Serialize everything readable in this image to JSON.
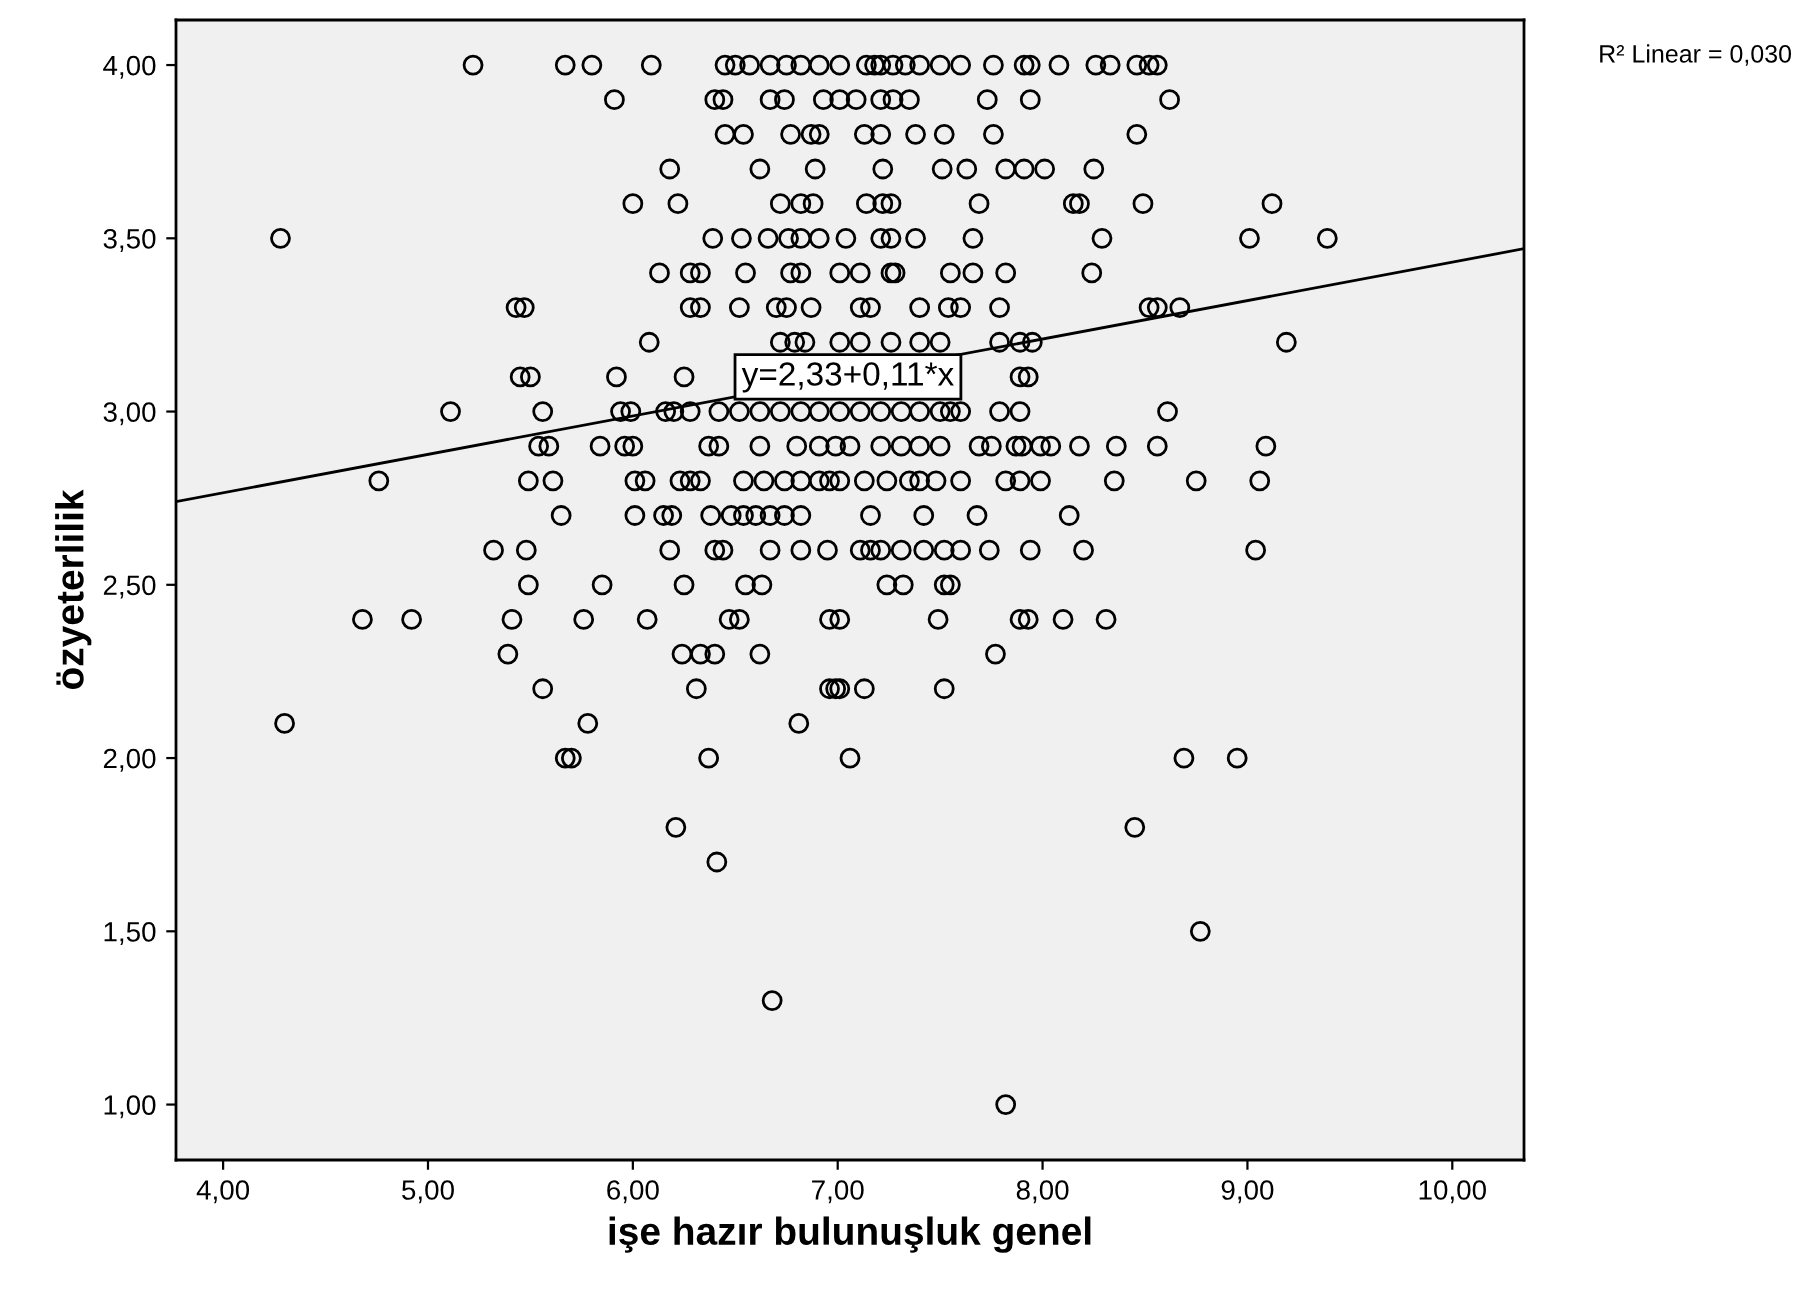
{
  "chart_data": {
    "type": "scatter",
    "xlabel": "işe hazır bulunuşluk genel",
    "ylabel": "özyeterlilik",
    "marker": "circle",
    "xlim": [
      3.77,
      10.35
    ],
    "ylim": [
      0.84,
      4.13
    ],
    "xticks": [
      {
        "value": 4,
        "label": "4,00"
      },
      {
        "value": 5,
        "label": "5,00"
      },
      {
        "value": 6,
        "label": "6,00"
      },
      {
        "value": 7,
        "label": "7,00"
      },
      {
        "value": 8,
        "label": "8,00"
      },
      {
        "value": 9,
        "label": "9,00"
      },
      {
        "value": 10,
        "label": "10,00"
      }
    ],
    "yticks": [
      {
        "value": 1,
        "label": "1,00"
      },
      {
        "value": 1.5,
        "label": "1,50"
      },
      {
        "value": 2,
        "label": "2,00"
      },
      {
        "value": 2.5,
        "label": "2,50"
      },
      {
        "value": 3,
        "label": "3,00"
      },
      {
        "value": 3.5,
        "label": "3,50"
      },
      {
        "value": 4,
        "label": "4,00"
      }
    ],
    "annotations": [
      {
        "text": "y=2,33+0,11*x",
        "x": 7.05,
        "y": 3.1
      },
      "R² Linear = 0,030"
    ],
    "series": [
      {
        "color": "#000000",
        "x": [
          5.22,
          5.67,
          5.8,
          6.09,
          6.45,
          6.5,
          6.57,
          6.67,
          6.75,
          6.82,
          6.91,
          7.01,
          7.14,
          7.18,
          7.21,
          7.27,
          7.33,
          7.4,
          7.5,
          7.6,
          7.76,
          7.91,
          7.94,
          8.08,
          8.26,
          8.33,
          8.46,
          8.52,
          8.56
        ],
        "values": [
          4,
          4,
          4,
          4,
          4,
          4,
          4,
          4,
          4,
          4,
          4,
          4,
          4,
          4,
          4,
          4,
          4,
          4,
          4,
          4,
          4,
          4,
          4,
          4,
          4,
          4,
          4,
          4,
          4
        ]
      },
      {
        "color": "#000000",
        "x": [
          5.91,
          6.4,
          6.44,
          6.67,
          6.74,
          6.93,
          7.01,
          7.09,
          7.21,
          7.27,
          7.35,
          7.73,
          7.94,
          8.62
        ],
        "values": [
          3.9,
          3.9,
          3.9,
          3.9,
          3.9,
          3.9,
          3.9,
          3.9,
          3.9,
          3.9,
          3.9,
          3.9,
          3.9,
          3.9
        ]
      },
      {
        "color": "#000000",
        "x": [
          6.45,
          6.54,
          6.77,
          6.87,
          6.91,
          7.13,
          7.21,
          7.38,
          7.52,
          7.76,
          8.46
        ],
        "values": [
          3.8,
          3.8,
          3.8,
          3.8,
          3.8,
          3.8,
          3.8,
          3.8,
          3.8,
          3.8,
          3.8
        ]
      },
      {
        "color": "#000000",
        "x": [
          6.18,
          6.62,
          6.89,
          7.22,
          7.51,
          7.63,
          7.82,
          7.91,
          8.01,
          8.25
        ],
        "values": [
          3.7,
          3.7,
          3.7,
          3.7,
          3.7,
          3.7,
          3.7,
          3.7,
          3.7,
          3.7
        ]
      },
      {
        "color": "#000000",
        "x": [
          6.0,
          6.22,
          6.72,
          6.82,
          6.88,
          7.14,
          7.22,
          7.26,
          7.69,
          8.15,
          8.18,
          8.49,
          9.12
        ],
        "values": [
          3.6,
          3.6,
          3.6,
          3.6,
          3.6,
          3.6,
          3.6,
          3.6,
          3.6,
          3.6,
          3.6,
          3.6,
          3.6
        ]
      },
      {
        "color": "#000000",
        "x": [
          4.28,
          6.39,
          6.53,
          6.66,
          6.76,
          6.82,
          6.91,
          7.04,
          7.21,
          7.26,
          7.38,
          7.66,
          8.29,
          9.01,
          9.39
        ],
        "values": [
          3.5,
          3.5,
          3.5,
          3.5,
          3.5,
          3.5,
          3.5,
          3.5,
          3.5,
          3.5,
          3.5,
          3.5,
          3.5,
          3.5,
          3.5
        ]
      },
      {
        "color": "#000000",
        "x": [
          6.13,
          6.28,
          6.33,
          6.55,
          6.77,
          6.82,
          7.01,
          7.11,
          7.26,
          7.28,
          7.55,
          7.66,
          7.82,
          8.24
        ],
        "values": [
          3.4,
          3.4,
          3.4,
          3.4,
          3.4,
          3.4,
          3.4,
          3.4,
          3.4,
          3.4,
          3.4,
          3.4,
          3.4,
          3.4
        ]
      },
      {
        "color": "#000000",
        "x": [
          5.43,
          5.47,
          6.28,
          6.33,
          6.52,
          6.7,
          6.75,
          6.87,
          7.11,
          7.16,
          7.4,
          7.54,
          7.6,
          7.79,
          8.52,
          8.56,
          8.67
        ],
        "values": [
          3.3,
          3.3,
          3.3,
          3.3,
          3.3,
          3.3,
          3.3,
          3.3,
          3.3,
          3.3,
          3.3,
          3.3,
          3.3,
          3.3,
          3.3,
          3.3,
          3.3
        ]
      },
      {
        "color": "#000000",
        "x": [
          6.08,
          6.72,
          6.79,
          6.84,
          7.01,
          7.11,
          7.26,
          7.4,
          7.5,
          7.79,
          7.89,
          7.95,
          9.19
        ],
        "values": [
          3.2,
          3.2,
          3.2,
          3.2,
          3.2,
          3.2,
          3.2,
          3.2,
          3.2,
          3.2,
          3.2,
          3.2,
          3.2
        ]
      },
      {
        "color": "#000000",
        "x": [
          5.45,
          5.5,
          5.92,
          6.25,
          7.89,
          7.93
        ],
        "values": [
          3.1,
          3.1,
          3.1,
          3.1,
          3.1,
          3.1
        ]
      },
      {
        "color": "#000000",
        "x": [
          5.11,
          5.56,
          5.94,
          5.99,
          6.16,
          6.2,
          6.28,
          6.42,
          6.52,
          6.62,
          6.72,
          6.82,
          6.91,
          7.01,
          7.11,
          7.21,
          7.31,
          7.4,
          7.5,
          7.55,
          7.6,
          7.79,
          7.89,
          8.61
        ],
        "values": [
          3,
          3,
          3,
          3,
          3,
          3,
          3,
          3,
          3,
          3,
          3,
          3,
          3,
          3,
          3,
          3,
          3,
          3,
          3,
          3,
          3,
          3,
          3,
          3
        ]
      },
      {
        "color": "#000000",
        "x": [
          5.54,
          5.59,
          5.84,
          5.96,
          6.0,
          6.37,
          6.42,
          6.62,
          6.8,
          6.91,
          6.99,
          7.06,
          7.21,
          7.31,
          7.4,
          7.5,
          7.69,
          7.75,
          7.87,
          7.9,
          7.99,
          8.04,
          8.18,
          8.36,
          8.56,
          9.09
        ],
        "values": [
          2.9,
          2.9,
          2.9,
          2.9,
          2.9,
          2.9,
          2.9,
          2.9,
          2.9,
          2.9,
          2.9,
          2.9,
          2.9,
          2.9,
          2.9,
          2.9,
          2.9,
          2.9,
          2.9,
          2.9,
          2.9,
          2.9,
          2.9,
          2.9,
          2.9,
          2.9
        ]
      },
      {
        "color": "#000000",
        "x": [
          4.76,
          5.49,
          5.61,
          6.01,
          6.06,
          6.23,
          6.28,
          6.33,
          6.54,
          6.64,
          6.74,
          6.82,
          6.91,
          6.96,
          7.01,
          7.13,
          7.24,
          7.35,
          7.4,
          7.48,
          7.6,
          7.82,
          7.89,
          7.99,
          8.35,
          8.75,
          9.06
        ],
        "values": [
          2.8,
          2.8,
          2.8,
          2.8,
          2.8,
          2.8,
          2.8,
          2.8,
          2.8,
          2.8,
          2.8,
          2.8,
          2.8,
          2.8,
          2.8,
          2.8,
          2.8,
          2.8,
          2.8,
          2.8,
          2.8,
          2.8,
          2.8,
          2.8,
          2.8,
          2.8,
          2.8
        ]
      },
      {
        "color": "#000000",
        "x": [
          5.65,
          6.01,
          6.15,
          6.19,
          6.38,
          6.48,
          6.54,
          6.6,
          6.67,
          6.74,
          6.82,
          7.16,
          7.42,
          7.68,
          8.13
        ],
        "values": [
          2.7,
          2.7,
          2.7,
          2.7,
          2.7,
          2.7,
          2.7,
          2.7,
          2.7,
          2.7,
          2.7,
          2.7,
          2.7,
          2.7,
          2.7
        ]
      },
      {
        "color": "#000000",
        "x": [
          5.32,
          5.48,
          6.18,
          6.4,
          6.44,
          6.67,
          6.82,
          6.95,
          7.11,
          7.16,
          7.21,
          7.31,
          7.42,
          7.52,
          7.6,
          7.74,
          7.94,
          8.2,
          9.04
        ],
        "values": [
          2.6,
          2.6,
          2.6,
          2.6,
          2.6,
          2.6,
          2.6,
          2.6,
          2.6,
          2.6,
          2.6,
          2.6,
          2.6,
          2.6,
          2.6,
          2.6,
          2.6,
          2.6,
          2.6
        ]
      },
      {
        "color": "#000000",
        "x": [
          5.49,
          5.85,
          6.25,
          6.55,
          6.63,
          7.24,
          7.32,
          7.52,
          7.55
        ],
        "values": [
          2.5,
          2.5,
          2.5,
          2.5,
          2.5,
          2.5,
          2.5,
          2.5,
          2.5
        ]
      },
      {
        "color": "#000000",
        "x": [
          4.68,
          4.92,
          5.41,
          5.76,
          6.07,
          6.47,
          6.52,
          6.96,
          7.01,
          7.49,
          7.89,
          7.93,
          8.1,
          8.31
        ],
        "values": [
          2.4,
          2.4,
          2.4,
          2.4,
          2.4,
          2.4,
          2.4,
          2.4,
          2.4,
          2.4,
          2.4,
          2.4,
          2.4,
          2.4
        ]
      },
      {
        "color": "#000000",
        "x": [
          5.39,
          6.24,
          6.33,
          6.4,
          6.62,
          7.77
        ],
        "values": [
          2.3,
          2.3,
          2.3,
          2.3,
          2.3,
          2.3
        ]
      },
      {
        "color": "#000000",
        "x": [
          5.56,
          6.31,
          6.96,
          6.99,
          7.01,
          7.13,
          7.52
        ],
        "values": [
          2.2,
          2.2,
          2.2,
          2.2,
          2.2,
          2.2,
          2.2
        ]
      },
      {
        "color": "#000000",
        "x": [
          4.3,
          5.78,
          6.81
        ],
        "values": [
          2.1,
          2.1,
          2.1
        ]
      },
      {
        "color": "#000000",
        "x": [
          5.67,
          5.7,
          6.37,
          7.06,
          8.69,
          8.95
        ],
        "values": [
          2,
          2,
          2,
          2,
          2,
          2
        ]
      },
      {
        "color": "#000000",
        "x": [
          6.21,
          8.45,
          6.41,
          8.77,
          6.68,
          7.82
        ],
        "values": [
          1.8,
          1.8,
          1.7,
          1.5,
          1.3,
          1
        ]
      },
      {
        "type": "line",
        "marker": "none",
        "line_style": "solid",
        "color": "#000000",
        "x": [
          3.77,
          10.35
        ],
        "values": [
          2.74,
          3.47
        ]
      }
    ]
  }
}
